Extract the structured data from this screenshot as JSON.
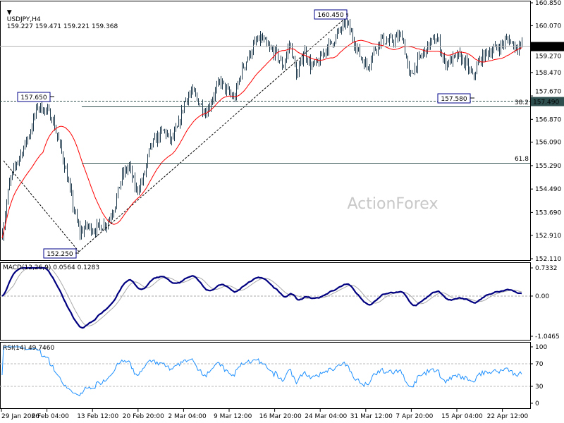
{
  "header": {
    "arrow_icon": "triangle-down-icon",
    "symbol": "USDJPY,H4",
    "ohlc": "159.227 159.471 159.221 159.368"
  },
  "watermark": "ActionForex",
  "colors": {
    "bars": "#1f3b4d",
    "ma": "#ff0000",
    "macd_main": "#000080",
    "macd_signal": "#a9a9a9",
    "rsi": "#1e90ff",
    "current_price_box": "#000000",
    "level_box": "#2f4f4f"
  },
  "chart_data": [
    {
      "type": "ohlc",
      "title": "USDJPY,H4",
      "ylim": [
        152.11,
        160.85
      ],
      "y_ticks": [
        "160.850",
        "160.070",
        "159.270",
        "158.470",
        "157.670",
        "156.870",
        "156.090",
        "155.290",
        "154.490",
        "153.690",
        "152.910",
        "152.110"
      ],
      "x_ticks": [
        "29 Jan 2026",
        "6 Feb 04:00",
        "13 Feb 12:00",
        "20 Feb 20:00",
        "2 Mar 04:00",
        "9 Mar 12:00",
        "16 Mar 20:00",
        "24 Mar 04:00",
        "31 Mar 12:00",
        "7 Apr 20:00",
        "15 Apr 04:00",
        "22 Apr 12:00"
      ],
      "close_approx": [
        152.99,
        154.68,
        155.4,
        155.89,
        156.49,
        157.33,
        157.21,
        156.97,
        156.13,
        155.16,
        153.96,
        152.99,
        153.23,
        153.11,
        153.23,
        153.36,
        153.96,
        154.92,
        155.28,
        154.44,
        154.8,
        155.89,
        156.25,
        156.49,
        156.13,
        156.61,
        157.57,
        157.81,
        157.45,
        157.09,
        157.69,
        158.18,
        157.81,
        157.57,
        158.54,
        159.02,
        159.5,
        159.62,
        159.26,
        159.14,
        158.66,
        159.5,
        158.3,
        159.26,
        158.66,
        158.78,
        159.26,
        159.5,
        159.86,
        160.22,
        159.62,
        159.02,
        158.66,
        159.26,
        159.62,
        159.5,
        159.62,
        159.74,
        158.3,
        158.78,
        159.14,
        159.5,
        159.62,
        158.78,
        158.9,
        159.02,
        158.78,
        158.3,
        158.9,
        159.14,
        159.26,
        159.38,
        159.62,
        159.38,
        159.368
      ],
      "current_price": "159.368",
      "moving_average": {
        "color": "red"
      },
      "annotations": {
        "high_1": "157.650",
        "low_1": "152.250",
        "high_2": "160.450",
        "low_2": "157.580",
        "support_level": "157.490",
        "fib_382": "38.2",
        "fib_618": "61.8"
      }
    },
    {
      "type": "line",
      "title": "MACD(12,26,9) 0.0564 0.1283",
      "y_ticks": [
        "0.7332",
        "0.00",
        "-1.0465"
      ],
      "ylim": [
        -1.0465,
        0.7332
      ]
    },
    {
      "type": "line",
      "title": "RSI(14) 49.7460",
      "y_ticks": [
        "100",
        "70",
        "30",
        "0"
      ],
      "ylim": [
        0,
        100
      ],
      "levels": [
        70,
        30
      ]
    }
  ]
}
